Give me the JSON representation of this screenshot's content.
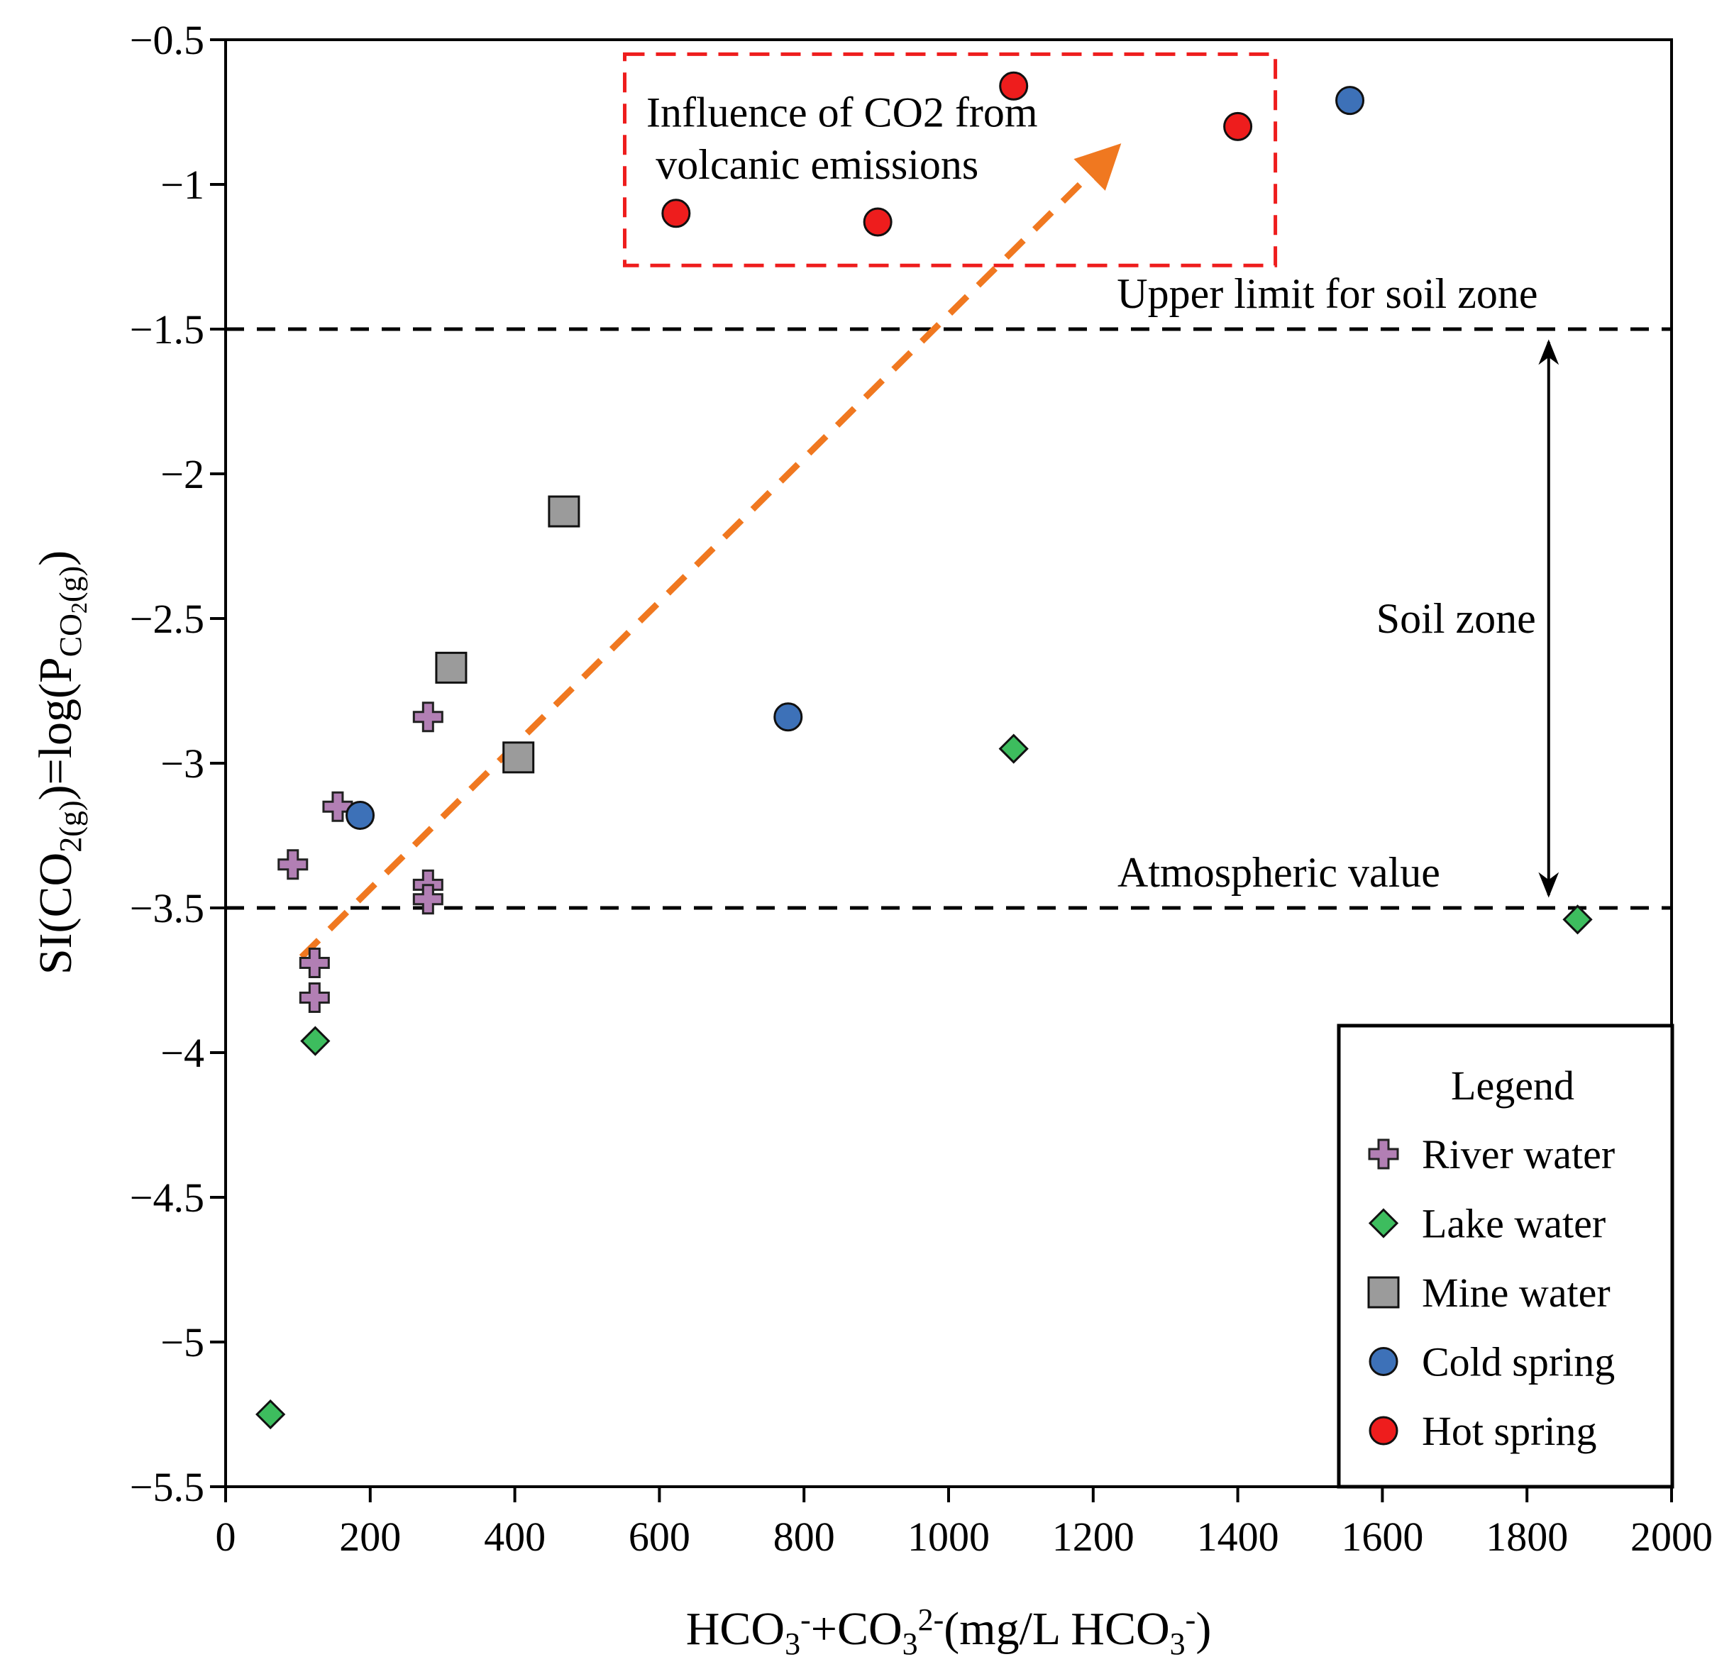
{
  "chart_data": {
    "type": "scatter",
    "xlabel": "HCO3-+CO32-(mg/L HCO3-)",
    "ylabel": "SI(CO2(g))=log(PCO2(g))",
    "xlim": [
      0,
      2000
    ],
    "ylim": [
      -5.5,
      -0.5
    ],
    "x_ticks": [
      "0",
      "200",
      "400",
      "600",
      "800",
      "1000",
      "1200",
      "1400",
      "1600",
      "1800",
      "2000"
    ],
    "y_ticks": [
      "-0.5",
      "-1",
      "-1.5",
      "-2",
      "-2.5",
      "-3",
      "-3.5",
      "-4",
      "-4.5",
      "-5",
      "-5.5"
    ],
    "series": [
      {
        "name": "River water",
        "marker": "plus",
        "color": "#b27fb4",
        "points": [
          [
            93,
            -3.35
          ],
          [
            155,
            -3.15
          ],
          [
            123,
            -3.69
          ],
          [
            123,
            -3.81
          ],
          [
            280,
            -2.84
          ],
          [
            280,
            -3.42
          ],
          [
            280,
            -3.47
          ]
        ]
      },
      {
        "name": "Lake water",
        "marker": "diamond",
        "color": "#3dbd5e",
        "points": [
          [
            62,
            -5.25
          ],
          [
            124,
            -3.96
          ],
          [
            1090,
            -2.95
          ],
          [
            1870,
            -3.54
          ]
        ]
      },
      {
        "name": "Mine water",
        "marker": "square",
        "color": "#9b9b9b",
        "points": [
          [
            468,
            -2.13
          ],
          [
            312,
            -2.67
          ],
          [
            405,
            -2.98
          ]
        ]
      },
      {
        "name": "Cold spring",
        "marker": "circle",
        "color": "#3d71b8",
        "points": [
          [
            186,
            -3.18
          ],
          [
            778,
            -2.84
          ],
          [
            1555,
            -0.71
          ]
        ]
      },
      {
        "name": "Hot spring",
        "marker": "circle",
        "color": "#ee1d1d",
        "points": [
          [
            1090,
            -0.66
          ],
          [
            1400,
            -0.8
          ],
          [
            623,
            -1.1
          ],
          [
            902,
            -1.13
          ]
        ]
      }
    ],
    "reference_lines": [
      {
        "y": -1.5,
        "label": "Upper limit for soil zone"
      },
      {
        "y": -3.5,
        "label": "Atmospheric value"
      }
    ],
    "soil_zone": {
      "label": "Soil zone",
      "x": 1830,
      "from": -3.5,
      "to": -1.5
    },
    "trend_arrow": {
      "from": [
        105,
        -3.67
      ],
      "to": [
        1230,
        -0.88
      ],
      "color": "#f07820"
    },
    "influence_box": {
      "x": [
        552,
        1452
      ],
      "y": [
        -0.55,
        -1.28
      ],
      "label_line1": "Influence of CO2 from",
      "label_line2": "volcanic emissions",
      "color": "#ee1d1d"
    },
    "legend": {
      "title": "Legend",
      "position": "bottom-right"
    }
  }
}
